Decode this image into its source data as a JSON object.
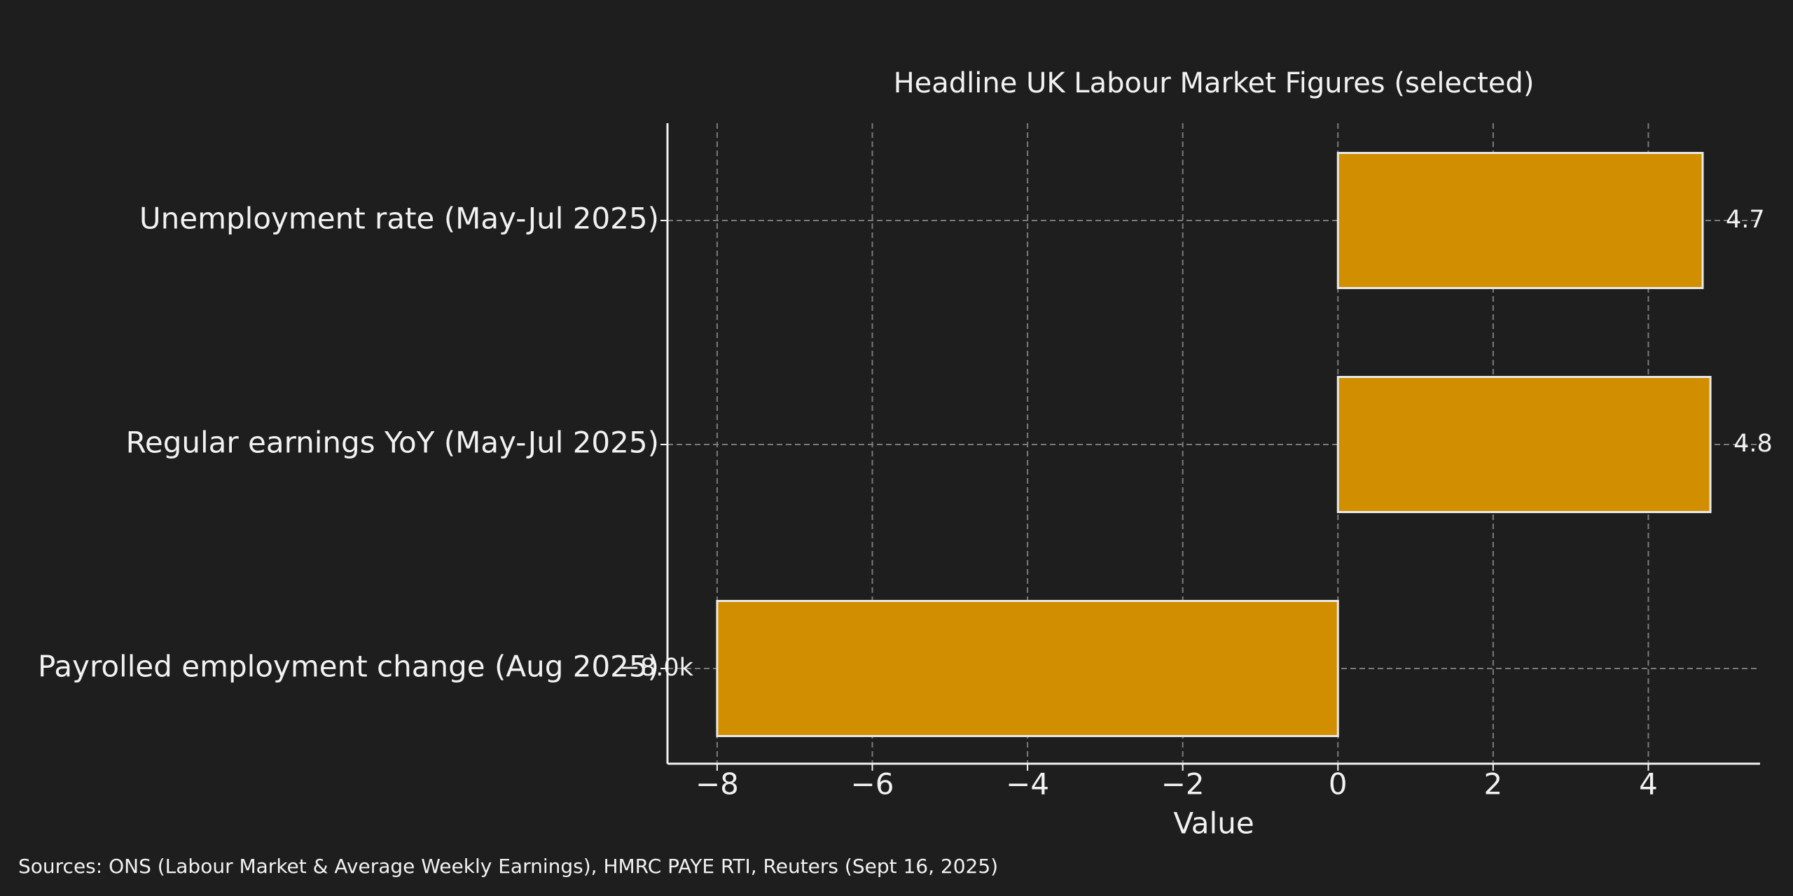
{
  "chart_data": {
    "type": "barh",
    "title": "Headline UK Labour Market Figures (selected)",
    "xlabel": "Value",
    "source": "Sources: ONS (Labour Market & Average Weekly Earnings), HMRC PAYE RTI, Reuters (Sept 16, 2025)",
    "categories": [
      "Unemployment rate (May-Jul 2025)",
      "Regular earnings YoY (May-Jul 2025)",
      "Payrolled employment change (Aug 2025)"
    ],
    "values": [
      4.7,
      4.8,
      -8.0
    ],
    "value_labels": [
      "4.7",
      "4.8",
      "−8.0k"
    ],
    "color": "#d18f00",
    "xlim": [
      -8.64,
      5.44
    ],
    "xticks": [
      {
        "value": -8,
        "label": "−8"
      },
      {
        "value": -6,
        "label": "−6"
      },
      {
        "value": -4,
        "label": "−4"
      },
      {
        "value": -2,
        "label": "−2"
      },
      0,
      2,
      4
    ],
    "grid": true
  }
}
